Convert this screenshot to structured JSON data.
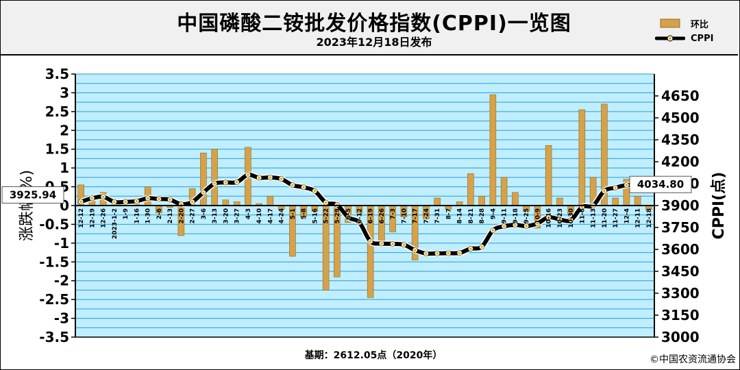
{
  "header": {
    "title": "中国磷酸二铵批发价格指数(CPPI)一览图",
    "subtitle": "2023年12月18日发布"
  },
  "legend": {
    "bar_label": "环比",
    "line_label": "CPPI"
  },
  "footer": {
    "base": "基期：2612.05点（2020年）",
    "copyright": "©中国农资流通协会"
  },
  "colors": {
    "plot_bg": "#bfeeff",
    "gridline": "#2a9bd0",
    "bar": "#d5a24a",
    "bar_dark": "#8f6a22",
    "line": "#000000",
    "marker_fill": "#fff6c8",
    "marker_dot": "#e0a020",
    "header_bg": "#f0f0f0"
  },
  "chart_data": {
    "type": "bar+line",
    "xlabel": "",
    "ylabel": "涨跌幅(%)",
    "y2label": "CPPI(点)",
    "ylim": [
      -3.5,
      3.5
    ],
    "y_ticks": [
      -3.5,
      -3,
      -2.5,
      -2,
      -1.5,
      -1,
      -0.5,
      0,
      0.5,
      1,
      1.5,
      2,
      2.5,
      3,
      3.5
    ],
    "y_tick_labels": [
      "-3.5",
      "-3",
      "-2.5",
      "-2",
      "-1.5",
      "-1",
      "-0.5",
      "0",
      "0.5",
      "1",
      "1.5",
      "2",
      "2.5",
      "3",
      "3.5"
    ],
    "y2lim": [
      3000,
      4800
    ],
    "y2_ticks": [
      3000,
      3150,
      3300,
      3450,
      3600,
      3750,
      3900,
      4050,
      4200,
      4350,
      4500,
      4650
    ],
    "categories": [
      "12-12",
      "12-19",
      "12-26",
      "2023-1-2",
      "1-9",
      "1-16",
      "1-30",
      "2-6",
      "2-13",
      "2-20",
      "2-27",
      "3-6",
      "3-13",
      "3-20",
      "3-27",
      "4-3",
      "4-10",
      "4-17",
      "4-24",
      "5-1",
      "5-8",
      "5-16",
      "5-22",
      "5-29",
      "6-5",
      "6-12",
      "6-19",
      "6-26",
      "7-3",
      "7-10",
      "7-17",
      "7-24",
      "7-31",
      "8-7",
      "8-14",
      "8-21",
      "8-28",
      "9-4",
      "9-11",
      "9-18",
      "9-25",
      "10-9",
      "10-16",
      "10-23",
      "10-30",
      "11-6",
      "11-13",
      "11-20",
      "11-27",
      "12-4",
      "12-11",
      "12-18"
    ],
    "series": [
      {
        "name": "环比",
        "axis": "left",
        "type": "bar",
        "values": [
          0.55,
          0.25,
          0.35,
          0.1,
          0.1,
          0.15,
          0.5,
          -0.2,
          -0.05,
          -0.8,
          0.45,
          1.4,
          1.5,
          0.15,
          0.1,
          1.55,
          0.05,
          0.25,
          -0.1,
          -1.35,
          -0.3,
          -0.15,
          -2.25,
          -1.9,
          -0.45,
          -0.2,
          -2.45,
          -1.05,
          -0.7,
          -0.3,
          -1.45,
          -0.35,
          0.2,
          -0.1,
          0.1,
          0.85,
          0.25,
          2.95,
          0.75,
          0.35,
          -0.15,
          -0.6,
          1.6,
          0.2,
          -0.25,
          2.55,
          0.75,
          2.7,
          0.2,
          0.7,
          0.25,
          -0.1
        ]
      },
      {
        "name": "CPPI",
        "axis": "right",
        "type": "line",
        "values": [
          3925.94,
          3950,
          3960,
          3925,
          3925,
          3930,
          3950,
          3945,
          3940,
          3910,
          3925,
          3990,
          4050,
          4058,
          4060,
          4110,
          4090,
          4092,
          4082,
          4040,
          4025,
          4000,
          3920,
          3905,
          3820,
          3785,
          3655,
          3640,
          3638,
          3632,
          3595,
          3572,
          3573,
          3574,
          3576,
          3605,
          3618,
          3730,
          3758,
          3768,
          3760,
          3778,
          3820,
          3805,
          3800,
          3890,
          3900,
          4000,
          4022,
          4040,
          4040,
          4034.8
        ]
      }
    ],
    "annotations": [
      {
        "index": 0,
        "text": "3925.94"
      },
      {
        "index": 51,
        "text": "4034.80"
      }
    ],
    "grid": true,
    "legend_position": "top-right"
  }
}
